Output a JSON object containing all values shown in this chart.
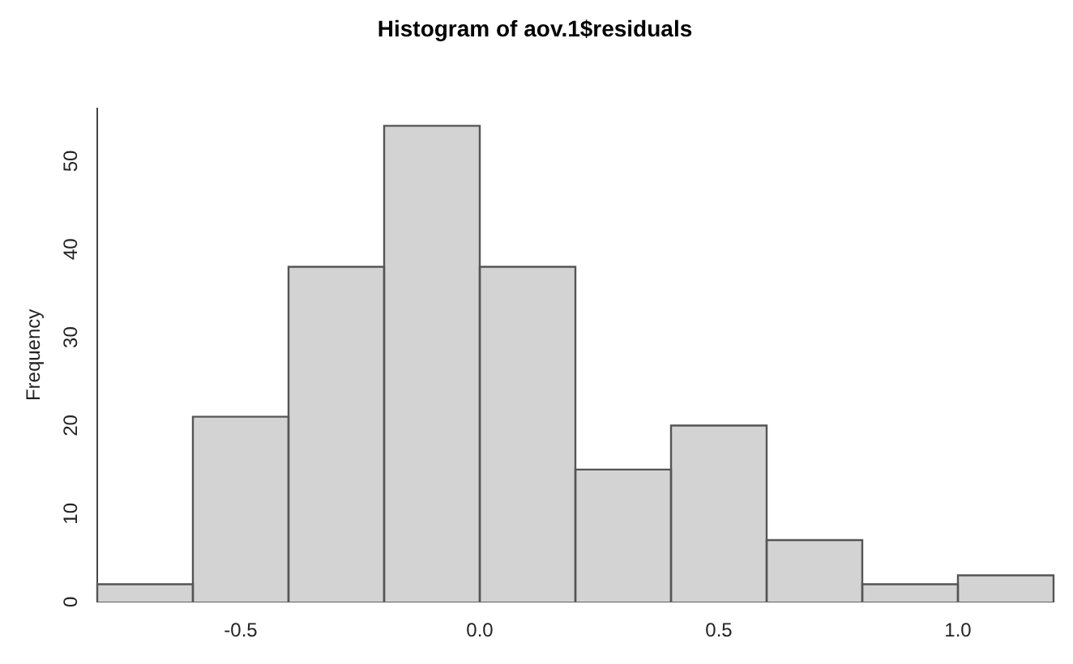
{
  "chart_data": {
    "type": "histogram",
    "title": "Histogram of aov.1$residuals",
    "ylabel": "Frequency",
    "bins": [
      -0.8,
      -0.6,
      -0.4,
      -0.2,
      0,
      0.2,
      0.4,
      0.6,
      0.8,
      1.0,
      1.2
    ],
    "values": [
      2,
      21,
      38,
      54,
      38,
      15,
      20,
      7,
      2,
      3
    ],
    "color": "#d3d3d3",
    "xlim": [
      -0.8,
      1.2
    ],
    "xticks": [
      -0.5,
      {
        "value": 0,
        "label": "0.0"
      },
      0.5,
      {
        "value": 1,
        "label": "1.0"
      }
    ],
    "ylim": [
      0,
      56
    ],
    "yticks": [
      0,
      10,
      20,
      30,
      40,
      50
    ],
    "grid": false
  }
}
